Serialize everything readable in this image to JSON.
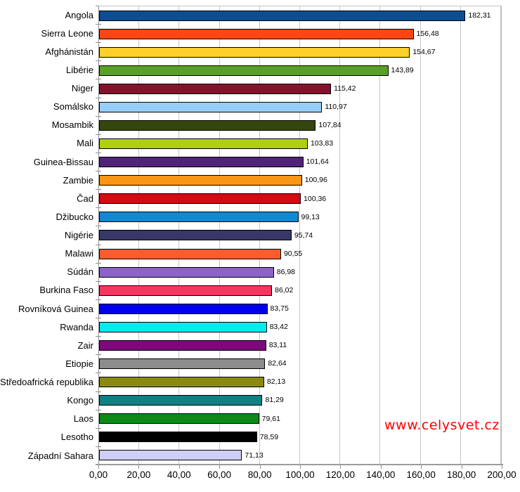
{
  "watermark": {
    "text": "www.celysvet.cz",
    "color": "#FF0000"
  },
  "chart_data": {
    "type": "bar",
    "orientation": "horizontal",
    "title": "",
    "xlabel": "",
    "ylabel": "",
    "xlim": [
      0,
      200
    ],
    "grid": true,
    "legend": false,
    "x_tick_labels": [
      "0,00",
      "20,00",
      "40,00",
      "60,00",
      "80,00",
      "100,00",
      "120,00",
      "140,00",
      "160,00",
      "180,00",
      "200,00"
    ],
    "categories": [
      "Angola",
      "Sierra Leone",
      "Afghánistán",
      "Libérie",
      "Niger",
      "Somálsko",
      "Mosambik",
      "Mali",
      "Guinea-Bissau",
      "Zambie",
      "Čad",
      "Džibucko",
      "Nigérie",
      "Malawi",
      "Súdán",
      "Burkina Faso",
      "Rovníková Guinea",
      "Rwanda",
      "Zair",
      "Etiopie",
      "Středoafrická republika",
      "Kongo",
      "Laos",
      "Lesotho",
      "Západní Sahara"
    ],
    "values": [
      182.31,
      156.48,
      154.67,
      143.89,
      115.42,
      110.97,
      107.84,
      103.83,
      101.64,
      100.96,
      100.36,
      99.13,
      95.74,
      90.55,
      86.98,
      86.02,
      83.75,
      83.42,
      83.11,
      82.64,
      82.13,
      81.29,
      79.61,
      78.59,
      71.13
    ],
    "value_labels": [
      "182,31",
      "156,48",
      "154,67",
      "143,89",
      "115,42",
      "110,97",
      "107,84",
      "103,83",
      "101,64",
      "100,96",
      "100,36",
      "99,13",
      "95,74",
      "90,55",
      "86,98",
      "86,02",
      "83,75",
      "83,42",
      "83,11",
      "82,64",
      "82,13",
      "81,29",
      "79,61",
      "78,59",
      "71,13"
    ],
    "bar_colors": [
      "#0C4E93",
      "#FF4612",
      "#FFD02B",
      "#58A124",
      "#85122D",
      "#97CEF8",
      "#36460F",
      "#AFD012",
      "#4F2377",
      "#FC9615",
      "#CE0E10",
      "#1089D3",
      "#383868",
      "#FB5C2D",
      "#8C63C7",
      "#F73560",
      "#0000EB",
      "#00EDED",
      "#7B0A7B",
      "#8C8C8C",
      "#8A8A10",
      "#0D8184",
      "#0B8A16",
      "#000000",
      "#CFCEF6"
    ]
  }
}
